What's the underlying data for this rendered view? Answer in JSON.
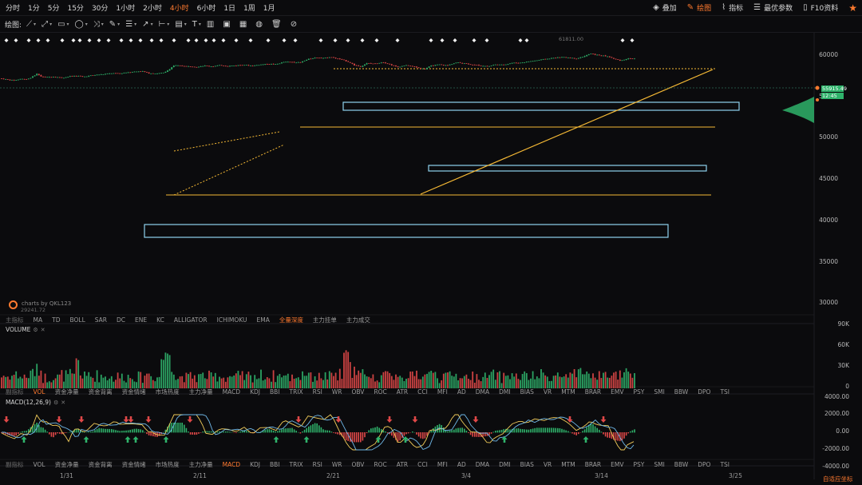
{
  "toolbar": {
    "timeframes": [
      "分时",
      "1分",
      "5分",
      "15分",
      "30分",
      "1小时",
      "2小时",
      "4小时",
      "6小时",
      "1日",
      "1周",
      "1月"
    ],
    "active_timeframe_index": 7,
    "right_buttons": [
      {
        "label": "叠加",
        "icon": "layers-icon",
        "active": false
      },
      {
        "label": "绘图",
        "icon": "pen-icon",
        "active": true
      },
      {
        "label": "指标",
        "icon": "indicator-icon",
        "active": false
      },
      {
        "label": "最优参数",
        "icon": "sliders-icon",
        "active": false
      },
      {
        "label": "F10资料",
        "icon": "document-icon",
        "active": false
      }
    ],
    "favorite_icon": "star-icon"
  },
  "drawing_bar": {
    "label": "绘图:",
    "tools": [
      "line-tool-icon",
      "ray-tool-icon",
      "rectangle-tool-icon",
      "ellipse-tool-icon",
      "cross-tool-icon",
      "pen-tool-icon",
      "fib-tool-icon",
      "arrow-tool-icon",
      "range-tool-icon",
      "comment-tool-icon",
      "text-tool-icon",
      "chart-a-icon",
      "chart-b-icon",
      "chart-c-icon",
      "chart-d-icon",
      "trash-icon",
      "clear-icon"
    ]
  },
  "main_chart": {
    "y_ticks": [
      "60000",
      "55000",
      "50000",
      "45000",
      "40000",
      "35000",
      "30000"
    ],
    "current_price": "55915.49",
    "countdown": "12:45",
    "high_label": "61811.00",
    "low_label": "29241.72",
    "watermark": "charts by QKL123",
    "indicators_row": {
      "first": "主指标",
      "items": [
        "MA",
        "TD",
        "BOLL",
        "SAR",
        "DC",
        "ENE",
        "KC",
        "ALLIGATOR",
        "ICHIMOKU",
        "EMA",
        "全量深度",
        "主力挂单",
        "主力成交"
      ],
      "active": "全量深度"
    }
  },
  "volume_panel": {
    "title": "VOLUME",
    "y_ticks": [
      "90K",
      "60K",
      "30K",
      "0"
    ],
    "indicators_row": {
      "first": "副指标",
      "items": [
        "VOL",
        "资金净量",
        "资金背离",
        "资金情绪",
        "市场热度",
        "主力净量",
        "MACD",
        "KDJ",
        "BBI",
        "TRIX",
        "RSI",
        "WR",
        "OBV",
        "ROC",
        "ATR",
        "CCI",
        "MFI",
        "AD",
        "DMA",
        "DMI",
        "BIAS",
        "VR",
        "MTM",
        "BRAR",
        "EMV",
        "PSY",
        "SMI",
        "BBW",
        "DPO",
        "TSI"
      ],
      "active": "VOL"
    }
  },
  "macd_panel": {
    "title": "MACD(12,26,9)",
    "y_ticks": [
      "4000.00",
      "2000.00",
      "0.00",
      "-2000.00",
      "-4000.00"
    ],
    "indicators_row": {
      "first": "副指标",
      "items": [
        "VOL",
        "资金净量",
        "资金背离",
        "资金情绪",
        "市场热度",
        "主力净量",
        "MACD",
        "KDJ",
        "BBI",
        "TRIX",
        "RSI",
        "WR",
        "OBV",
        "ROC",
        "ATR",
        "CCI",
        "MFI",
        "AD",
        "DMA",
        "DMI",
        "BIAS",
        "VR",
        "MTM",
        "BRAR",
        "EMV",
        "PSY",
        "SMI",
        "BBW",
        "DPO",
        "TSI"
      ],
      "active": "MACD"
    }
  },
  "x_axis": [
    "1/31",
    "2/11",
    "2/21",
    "3/4",
    "3/14",
    "3/25"
  ],
  "bottom_link": "自适应坐标",
  "colors": {
    "up": "#2fb36b",
    "down": "#e04848",
    "accent": "#ff7a2f",
    "box": "#8fd3ee",
    "trend": "#f5b935"
  }
}
